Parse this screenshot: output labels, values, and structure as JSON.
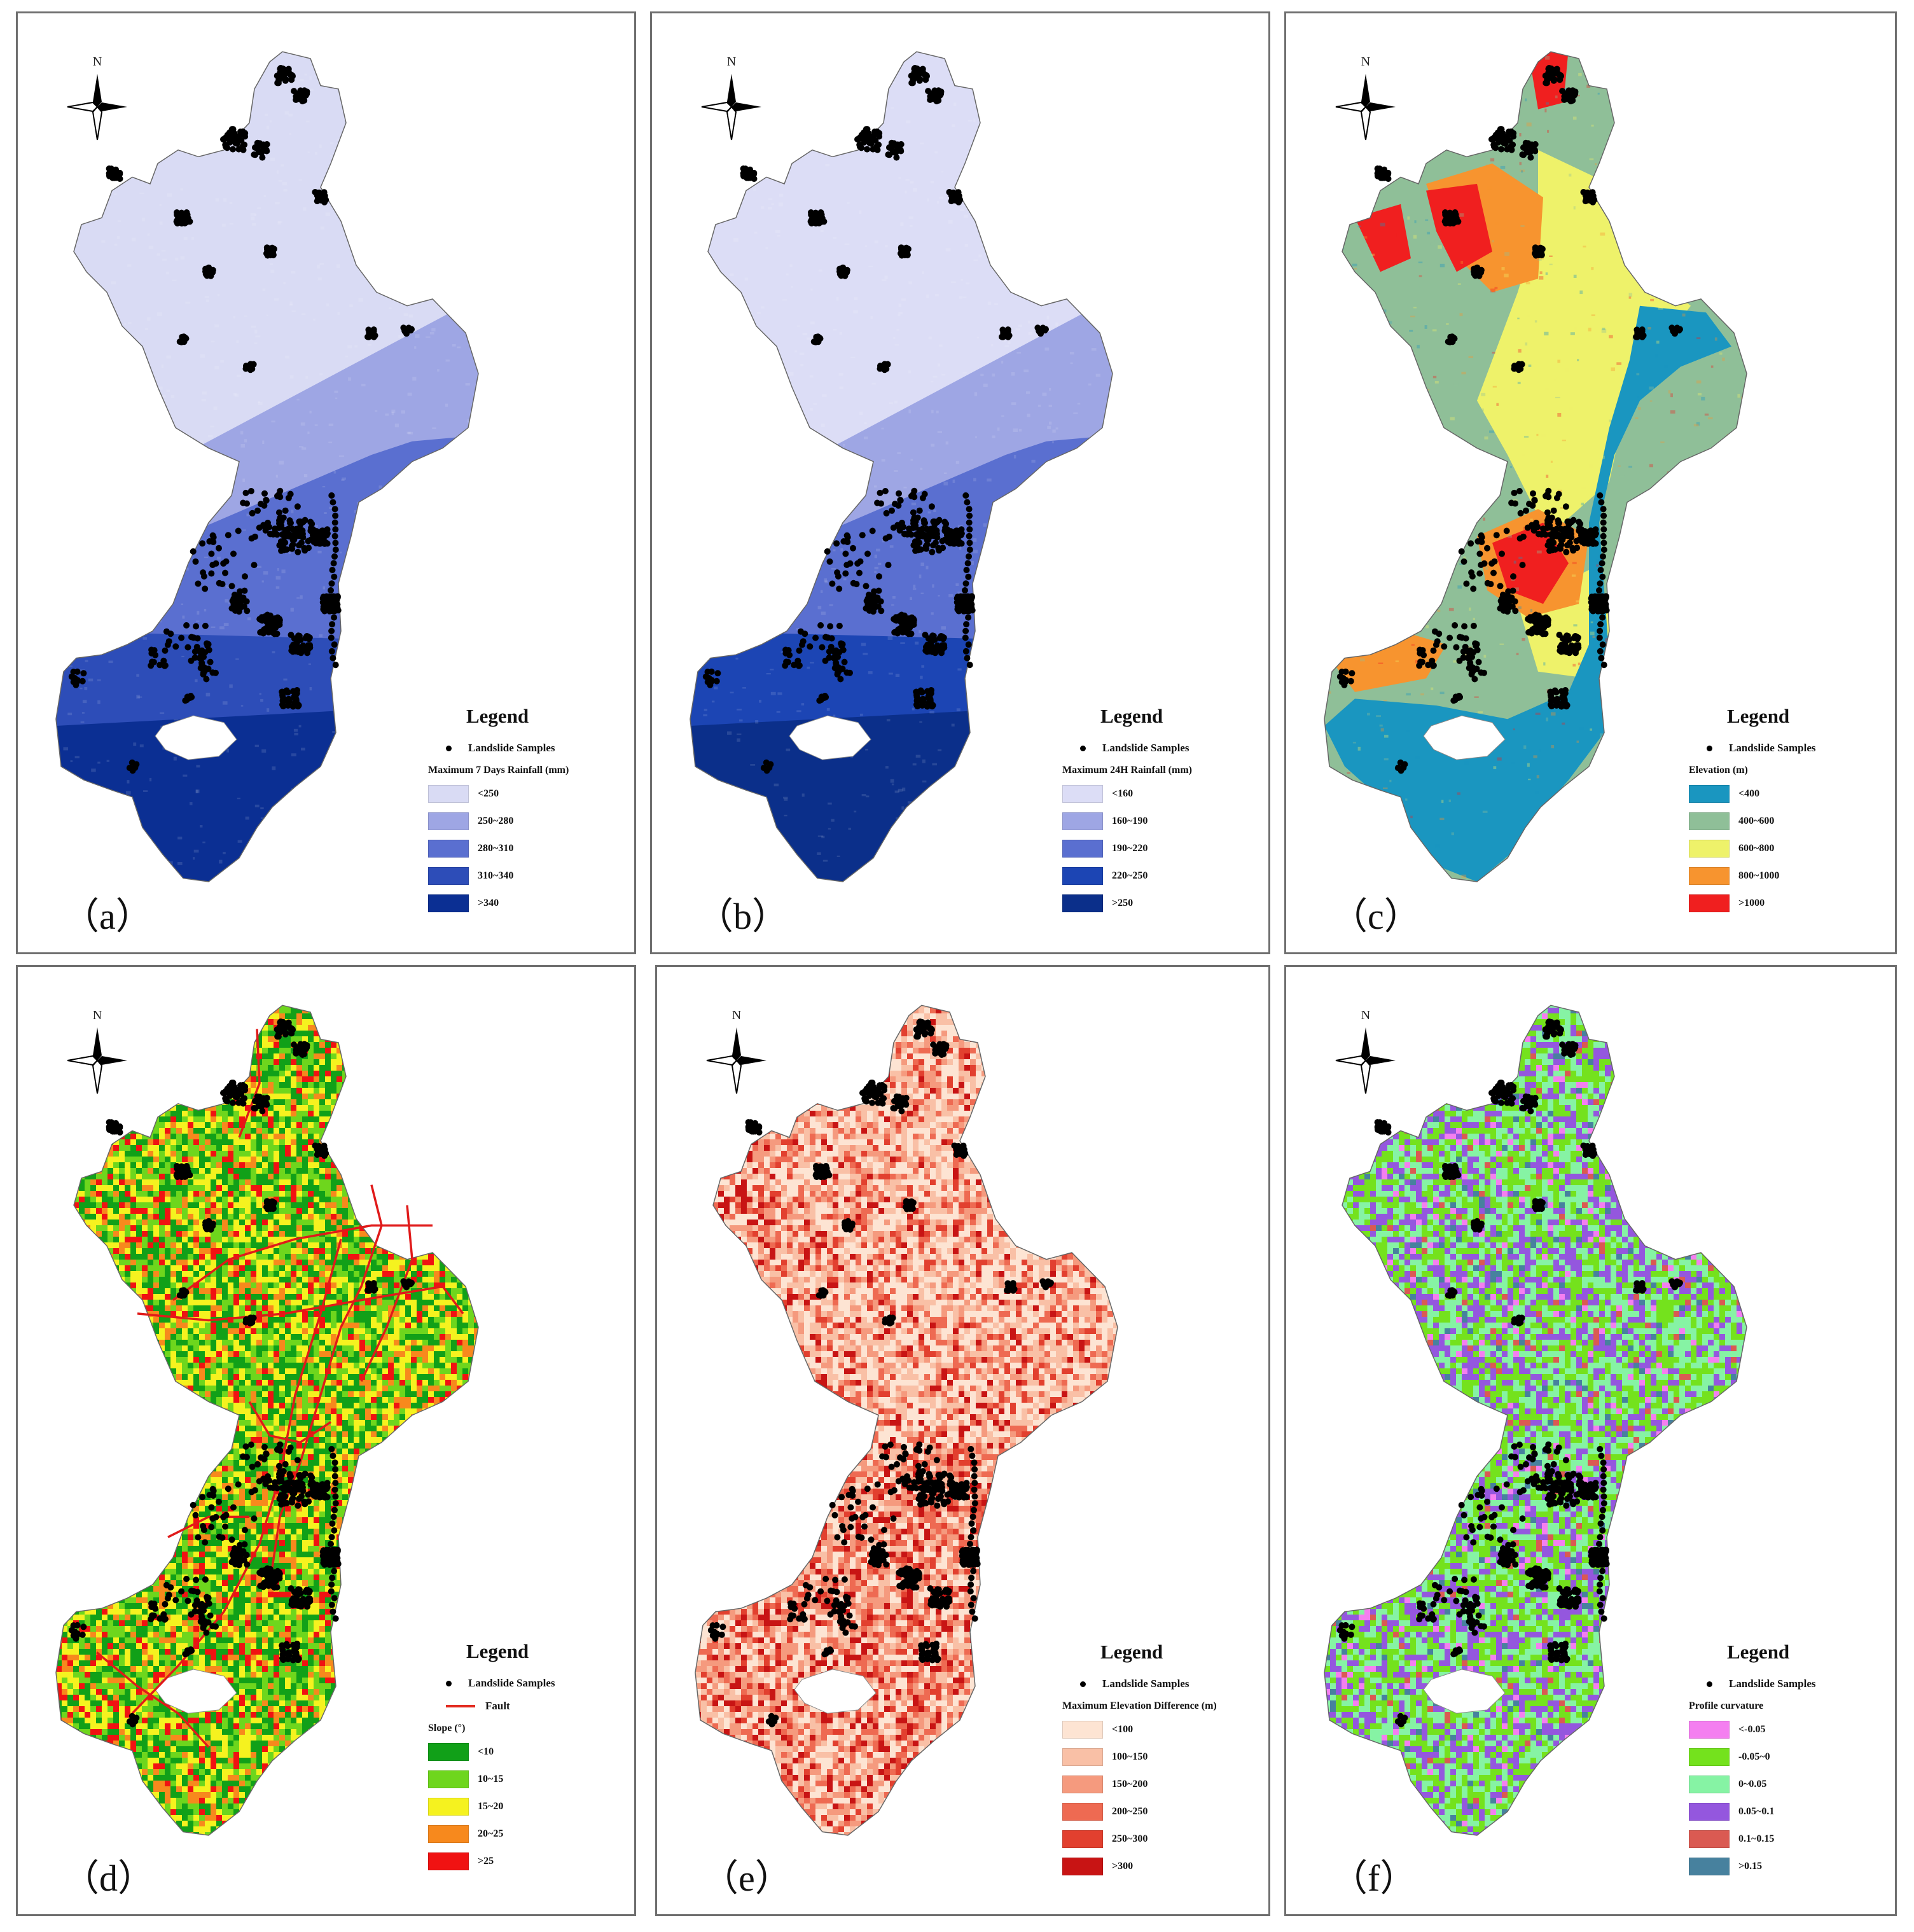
{
  "figure": {
    "panels": [
      {
        "id": "a",
        "label": "（a）",
        "map_style": "rainfall",
        "legend": {
          "title": "Legend",
          "samples_label": "Landslide Samples",
          "variable_title": "Maximum 7 Days Rainfall (mm)",
          "classes": [
            {
              "label": "<250",
              "color": "#d9dbf4"
            },
            {
              "label": "250~280",
              "color": "#9ea6e4"
            },
            {
              "label": "280~310",
              "color": "#5a6fd0"
            },
            {
              "label": "310~340",
              "color": "#2d4db8"
            },
            {
              "label": ">340",
              "color": "#0b2f93"
            }
          ]
        }
      },
      {
        "id": "b",
        "label": "（b）",
        "map_style": "rainfall",
        "legend": {
          "title": "Legend",
          "samples_label": "Landslide Samples",
          "variable_title": "Maximum 24H Rainfall (mm)",
          "classes": [
            {
              "label": "<160",
              "color": "#dcddf6"
            },
            {
              "label": "160~190",
              "color": "#9ea6e4"
            },
            {
              "label": "190~220",
              "color": "#5a6fd0"
            },
            {
              "label": "220~250",
              "color": "#1c45b4"
            },
            {
              "label": ">250",
              "color": "#0b2f8a"
            }
          ]
        }
      },
      {
        "id": "c",
        "label": "（c）",
        "map_style": "elevation",
        "legend": {
          "title": "Legend",
          "samples_label": "Landslide Samples",
          "variable_title": "Elevation (m)",
          "classes": [
            {
              "label": "<400",
              "color": "#1a96c0"
            },
            {
              "label": "400~600",
              "color": "#8fbf98"
            },
            {
              "label": "600~800",
              "color": "#eef26a"
            },
            {
              "label": "800~1000",
              "color": "#f7942f"
            },
            {
              "label": ">1000",
              "color": "#f01f1f"
            }
          ]
        }
      },
      {
        "id": "d",
        "label": "（d）",
        "map_style": "slope",
        "legend": {
          "title": "Legend",
          "samples_label": "Landslide Samples",
          "fault_label": "Fault",
          "variable_title": "Slope (°)",
          "classes": [
            {
              "label": "<10",
              "color": "#11a018"
            },
            {
              "label": "10~15",
              "color": "#6ed61d"
            },
            {
              "label": "15~20",
              "color": "#f5f21f"
            },
            {
              "label": "20~25",
              "color": "#f7891d"
            },
            {
              "label": ">25",
              "color": "#f01212"
            }
          ]
        }
      },
      {
        "id": "e",
        "label": "（e）",
        "map_style": "elevdiff",
        "legend": {
          "title": "Legend",
          "samples_label": "Landslide Samples",
          "variable_title": "Maximum Elevation Difference (m)",
          "classes": [
            {
              "label": "<100",
              "color": "#fde4d3"
            },
            {
              "label": "100~150",
              "color": "#f9c0a6"
            },
            {
              "label": "150~200",
              "color": "#f59a7e"
            },
            {
              "label": "200~250",
              "color": "#ee6a52"
            },
            {
              "label": "250~300",
              "color": "#e2402f"
            },
            {
              "label": ">300",
              "color": "#c81414"
            }
          ]
        }
      },
      {
        "id": "f",
        "label": "（f）",
        "map_style": "curvature",
        "legend": {
          "title": "Legend",
          "samples_label": "Landslide Samples",
          "variable_title": "Profile curvature",
          "classes": [
            {
              "label": "<-0.05",
              "color": "#f47ff0"
            },
            {
              "label": "-0.05~0",
              "color": "#74e21d"
            },
            {
              "label": "0~0.05",
              "color": "#86f3a4"
            },
            {
              "label": "0.05~0.1",
              "color": "#9457de"
            },
            {
              "label": "0.1~0.15",
              "color": "#da5a52"
            },
            {
              "label": ">0.15",
              "color": "#47819e"
            }
          ]
        }
      }
    ],
    "north_label": "N"
  }
}
